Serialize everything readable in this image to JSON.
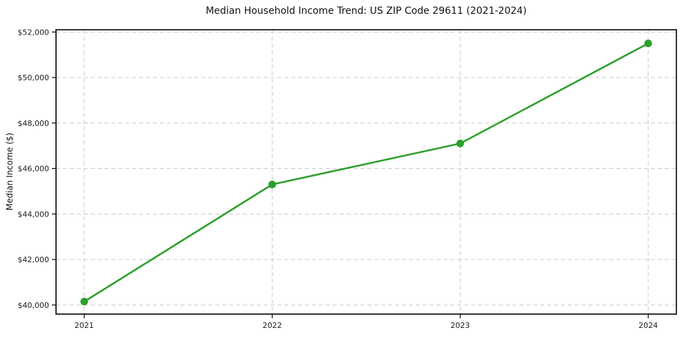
{
  "chart_data": {
    "type": "line",
    "title": "Median Household Income Trend: US ZIP Code 29611 (2021-2024)",
    "xlabel": "",
    "ylabel": "Median Income ($)",
    "x": [
      2021,
      2022,
      2023,
      2024
    ],
    "values": [
      40150,
      45300,
      47100,
      51500
    ],
    "xtick_labels": [
      "2021",
      "2022",
      "2023",
      "2024"
    ],
    "yticks": [
      40000,
      42000,
      44000,
      46000,
      48000,
      50000,
      52000
    ],
    "ytick_labels": [
      "$40,000",
      "$42,000",
      "$44,000",
      "$46,000",
      "$48,000",
      "$50,000",
      "$52,000"
    ],
    "xlim": [
      2020.85,
      2024.15
    ],
    "ylim": [
      39600,
      52100
    ],
    "grid": "dashed-both-axes",
    "legend_position": "none",
    "marker": "filled-circle",
    "colors": {
      "line": "#2ca02c",
      "marker": "#2ca02c",
      "grid": "#c9c9c9",
      "spine": "#000000",
      "text": "#1a1a1a",
      "background": "#ffffff"
    }
  }
}
